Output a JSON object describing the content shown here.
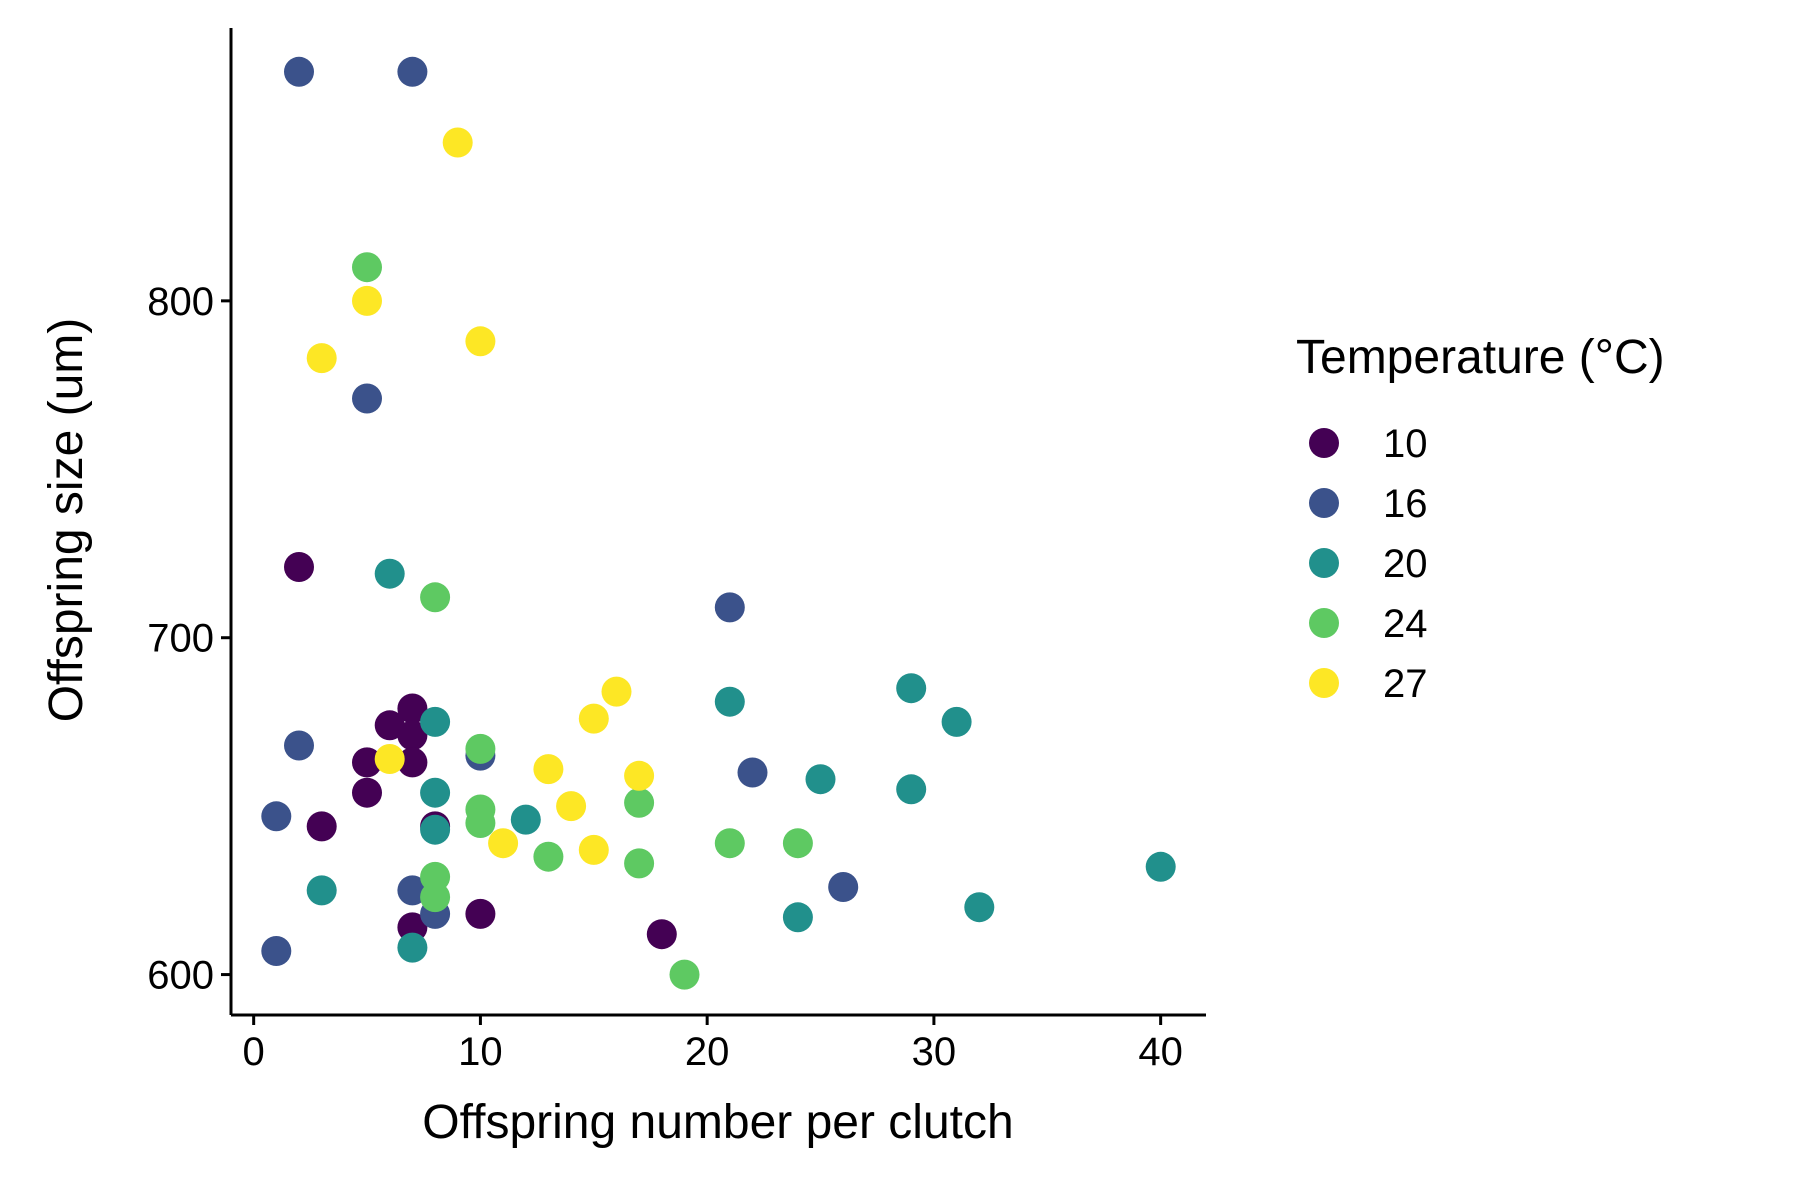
{
  "chart_data": {
    "type": "scatter",
    "title": "",
    "xlabel": "Offspring number per clutch",
    "ylabel": "Offspring size (um)",
    "xlim": [
      -1,
      42
    ],
    "ylim": [
      588,
      881
    ],
    "xticks": [
      0,
      10,
      20,
      30,
      40
    ],
    "yticks": [
      600,
      700,
      800
    ],
    "grid": false,
    "legend": {
      "title": "Temperature (°C)",
      "position": "right",
      "entries": [
        {
          "label": "10",
          "color": "#440154"
        },
        {
          "label": "16",
          "color": "#3b528b"
        },
        {
          "label": "20",
          "color": "#21908c"
        },
        {
          "label": "24",
          "color": "#5ec962"
        },
        {
          "label": "27",
          "color": "#fde725"
        }
      ]
    },
    "series": [
      {
        "name": "10",
        "color": "#440154",
        "points": [
          [
            2,
            721
          ],
          [
            3,
            644
          ],
          [
            5,
            663
          ],
          [
            5,
            654
          ],
          [
            6,
            674
          ],
          [
            7,
            679
          ],
          [
            7,
            671
          ],
          [
            7,
            663
          ],
          [
            7,
            614
          ],
          [
            8,
            644
          ],
          [
            10,
            618
          ],
          [
            18,
            612
          ]
        ]
      },
      {
        "name": "16",
        "color": "#3b528b",
        "points": [
          [
            1,
            607
          ],
          [
            1,
            647
          ],
          [
            2,
            868
          ],
          [
            2,
            668
          ],
          [
            5,
            771
          ],
          [
            7,
            868
          ],
          [
            7,
            625
          ],
          [
            8,
            618
          ],
          [
            10,
            665
          ],
          [
            21,
            709
          ],
          [
            22,
            660
          ],
          [
            26,
            626
          ]
        ]
      },
      {
        "name": "20",
        "color": "#21908c",
        "points": [
          [
            3,
            625
          ],
          [
            6,
            719
          ],
          [
            7,
            608
          ],
          [
            8,
            675
          ],
          [
            8,
            654
          ],
          [
            8,
            643
          ],
          [
            12,
            646
          ],
          [
            21,
            681
          ],
          [
            24,
            617
          ],
          [
            25,
            658
          ],
          [
            29,
            685
          ],
          [
            29,
            655
          ],
          [
            31,
            675
          ],
          [
            32,
            620
          ],
          [
            40,
            632
          ]
        ]
      },
      {
        "name": "24",
        "color": "#5ec962",
        "points": [
          [
            5,
            810
          ],
          [
            8,
            712
          ],
          [
            8,
            629
          ],
          [
            8,
            623
          ],
          [
            10,
            667
          ],
          [
            10,
            649
          ],
          [
            10,
            645
          ],
          [
            13,
            635
          ],
          [
            17,
            651
          ],
          [
            17,
            633
          ],
          [
            19,
            600
          ],
          [
            21,
            639
          ],
          [
            24,
            639
          ]
        ]
      },
      {
        "name": "27",
        "color": "#fde725",
        "points": [
          [
            3,
            783
          ],
          [
            5,
            800
          ],
          [
            6,
            664
          ],
          [
            9,
            847
          ],
          [
            10,
            788
          ],
          [
            11,
            639
          ],
          [
            13,
            661
          ],
          [
            14,
            650
          ],
          [
            15,
            676
          ],
          [
            15,
            637
          ],
          [
            16,
            684
          ],
          [
            17,
            659
          ]
        ]
      }
    ]
  }
}
